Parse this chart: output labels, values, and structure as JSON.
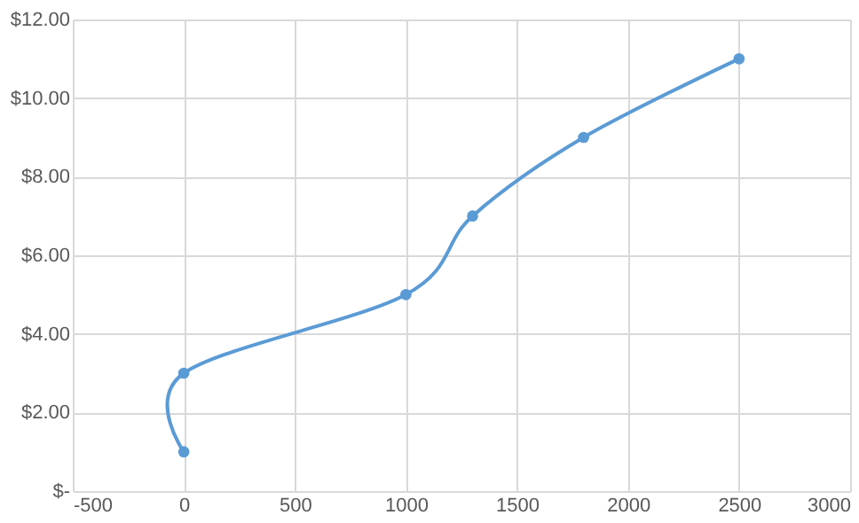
{
  "chart_data": {
    "type": "line",
    "x": [
      0,
      0,
      1000,
      1300,
      1800,
      2500
    ],
    "series": [
      {
        "color": "#5b9bd5",
        "values": [
          1,
          3,
          5,
          7,
          9,
          11
        ]
      }
    ],
    "xlim": [
      -500,
      3000
    ],
    "xticks": [
      -500,
      0,
      500,
      1000,
      1500,
      2000,
      2500,
      3000
    ],
    "ylim": [
      0,
      12
    ],
    "yticks": [
      {
        "value": 0,
        "label": "$-"
      },
      {
        "value": 2,
        "label": "$2.00"
      },
      {
        "value": 4,
        "label": "$4.00"
      },
      {
        "value": 6,
        "label": "$6.00"
      },
      {
        "value": 8,
        "label": "$8.00"
      },
      {
        "value": 10,
        "label": "$10.00"
      },
      {
        "value": 12,
        "label": "$12.00"
      }
    ],
    "grid": true,
    "marker": "circle",
    "line_style": "solid"
  }
}
